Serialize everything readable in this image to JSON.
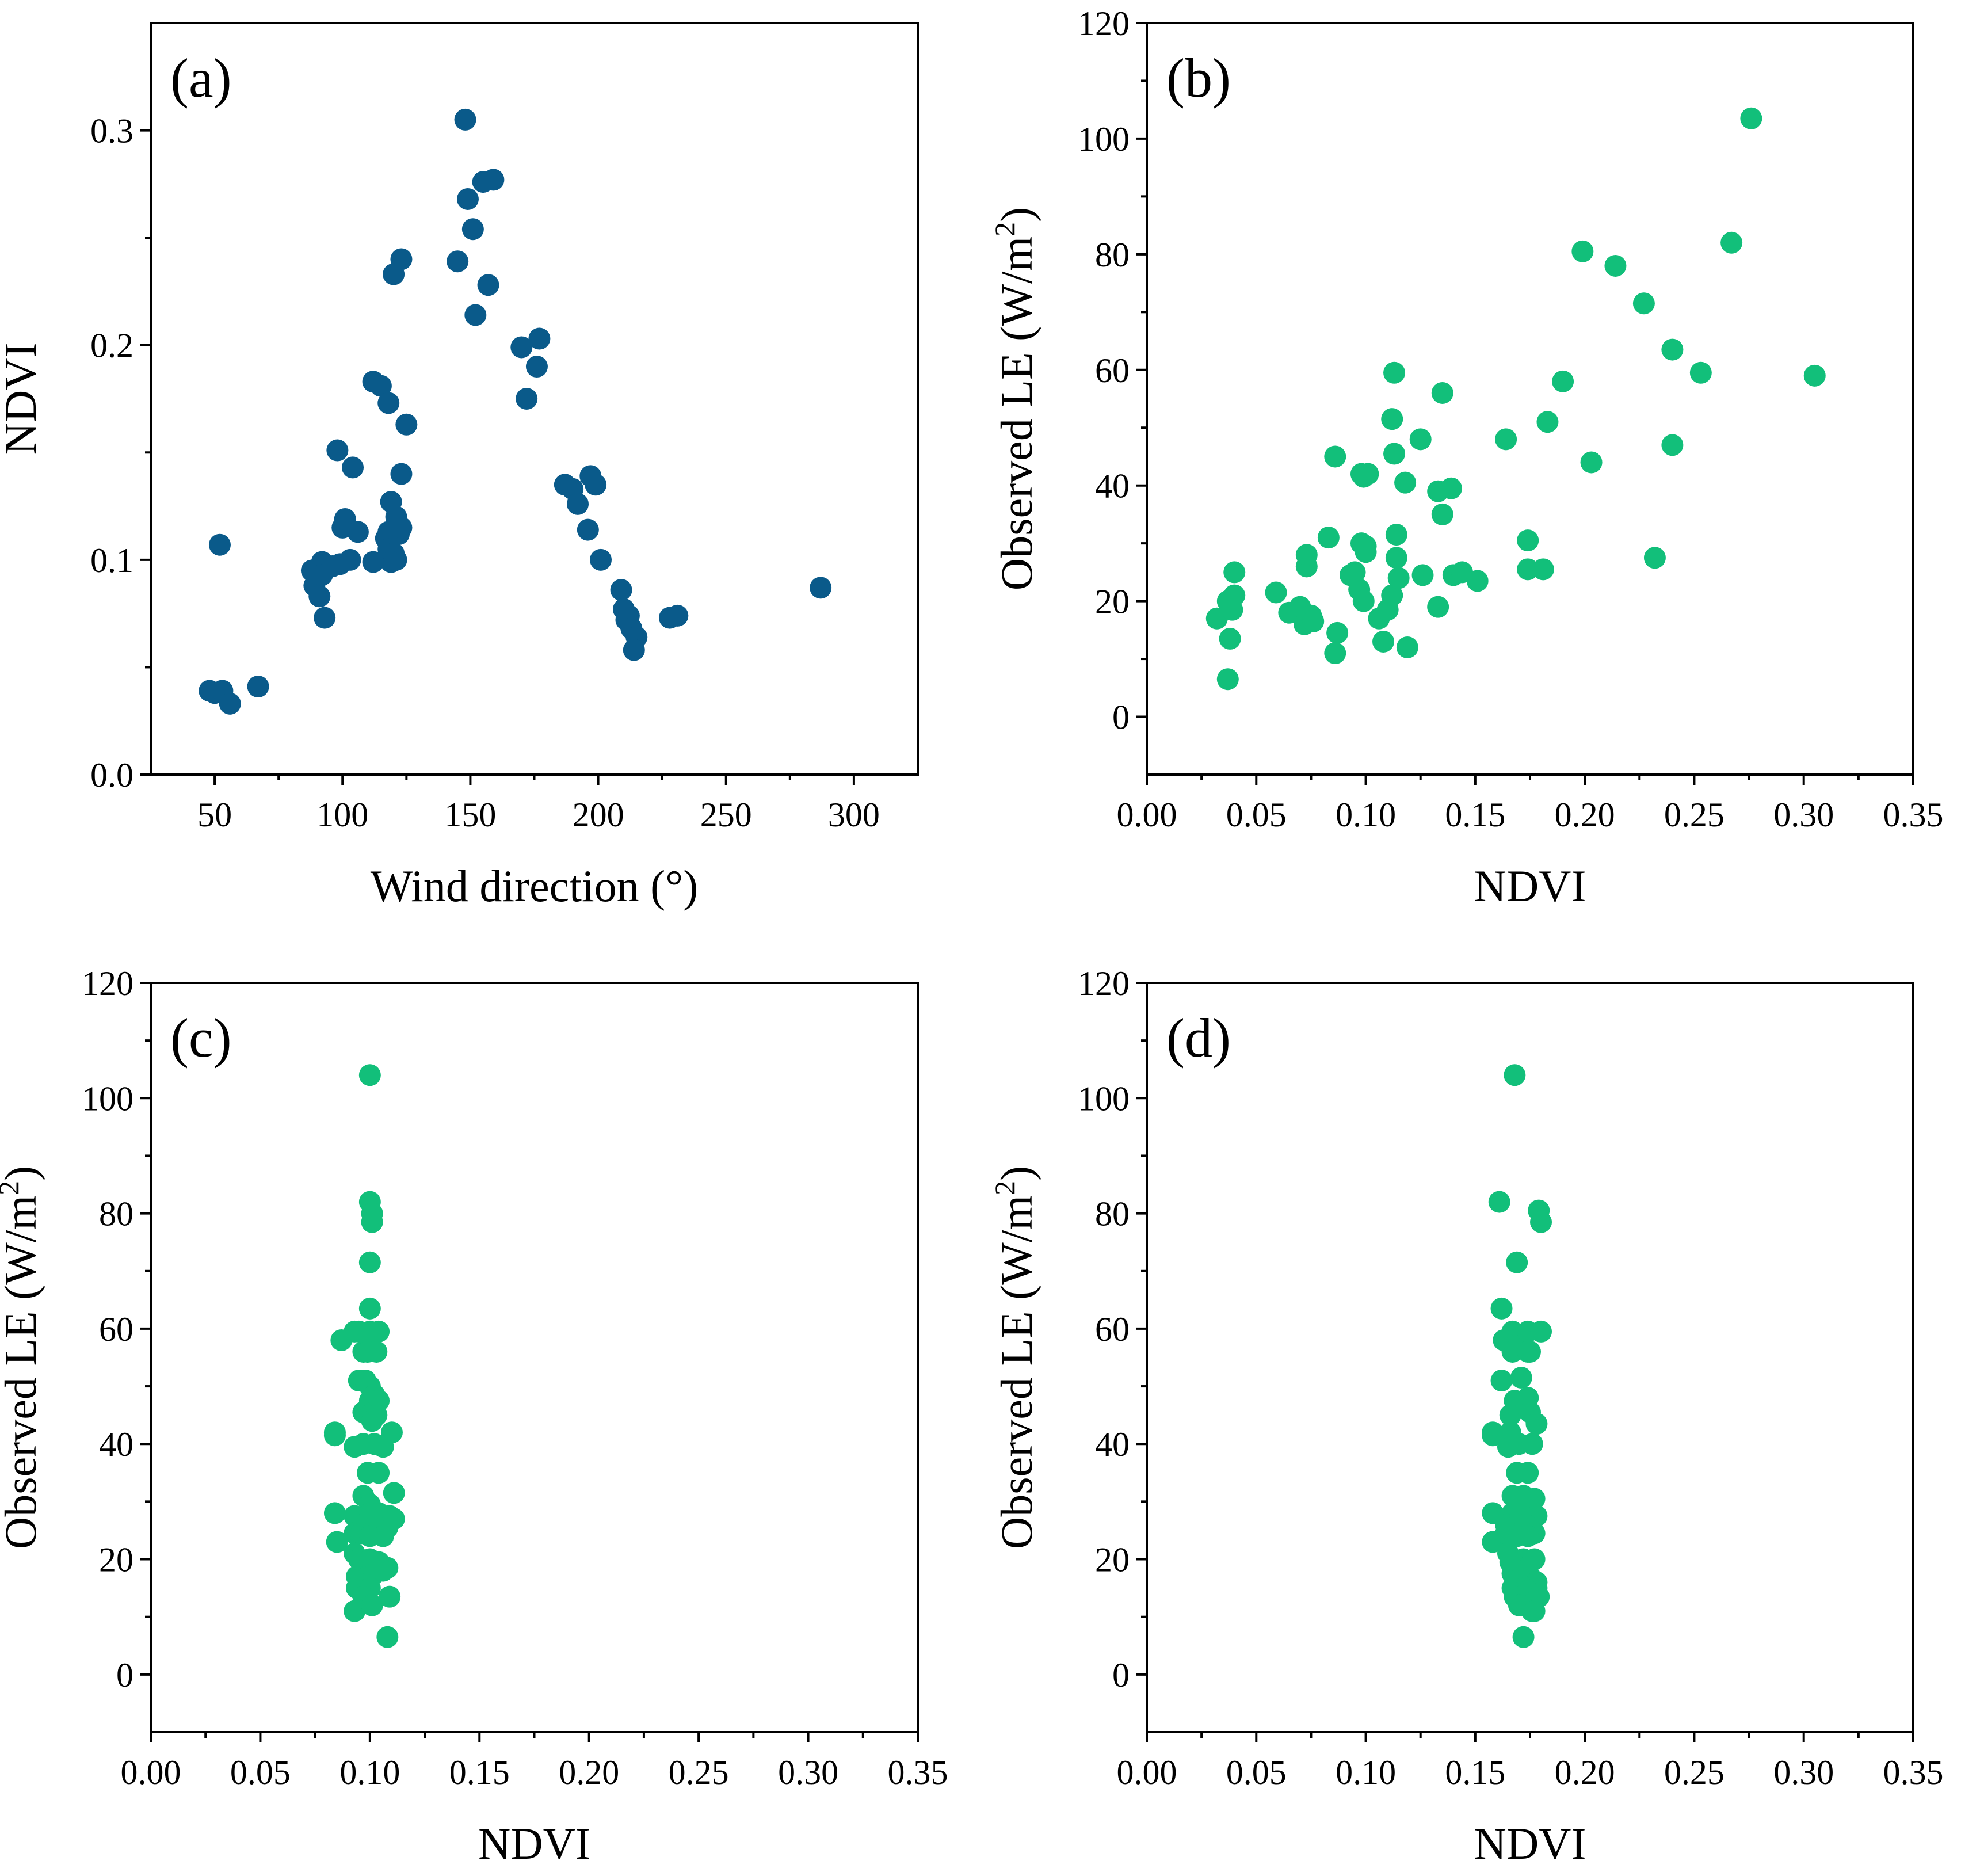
{
  "figure_title": "",
  "colors": {
    "panel_a": "#0a5a8a",
    "panels_bcd": "#12bf7a"
  },
  "chart_data": [
    {
      "panel": "(a)",
      "type": "scatter",
      "xlabel": "Wind direction (°)",
      "ylabel": "NDVI",
      "xlim": [
        25,
        325
      ],
      "ylim": [
        0,
        0.35
      ],
      "xticks": [
        50,
        100,
        150,
        200,
        250,
        300
      ],
      "yticks": [
        0.0,
        0.1,
        0.2,
        0.3
      ],
      "xtick_labels": [
        "50",
        "100",
        "150",
        "200",
        "250",
        "300"
      ],
      "ytick_labels": [
        "0.0",
        "0.1",
        "0.2",
        "0.3"
      ],
      "color": "#0a5a8a",
      "x": [
        48,
        50,
        53,
        56,
        67,
        52,
        88,
        89,
        92,
        93,
        91,
        92,
        96,
        100,
        101,
        103,
        99,
        98,
        104,
        106,
        112,
        115,
        118,
        120,
        123,
        125,
        119,
        121,
        117,
        118,
        122,
        118,
        121,
        123,
        120,
        119,
        123,
        145,
        149,
        148,
        151,
        157,
        152,
        155,
        159,
        170,
        172,
        177,
        176,
        187,
        190,
        192,
        196,
        197,
        199,
        201,
        209,
        210,
        211,
        212,
        213,
        215,
        214,
        228,
        231,
        287,
        112
      ],
      "y": [
        0.039,
        0.038,
        0.039,
        0.033,
        0.041,
        0.107,
        0.095,
        0.088,
        0.099,
        0.073,
        0.083,
        0.093,
        0.097,
        0.115,
        0.119,
        0.1,
        0.098,
        0.151,
        0.143,
        0.113,
        0.183,
        0.181,
        0.173,
        0.233,
        0.24,
        0.163,
        0.127,
        0.12,
        0.11,
        0.113,
        0.112,
        0.105,
        0.1,
        0.115,
        0.103,
        0.099,
        0.14,
        0.239,
        0.268,
        0.305,
        0.254,
        0.228,
        0.214,
        0.276,
        0.277,
        0.199,
        0.175,
        0.203,
        0.19,
        0.135,
        0.133,
        0.126,
        0.114,
        0.139,
        0.135,
        0.1,
        0.086,
        0.077,
        0.072,
        0.074,
        0.068,
        0.064,
        0.058,
        0.073,
        0.074,
        0.087,
        0.099
      ]
    },
    {
      "panel": "(b)",
      "type": "scatter",
      "xlabel": "NDVI",
      "ylabel": "Observed LE (W/m",
      "ylabel_sup": "2",
      "ylabel_end": ")",
      "xlim": [
        0,
        0.35
      ],
      "ylim": [
        -10,
        120
      ],
      "xticks": [
        0,
        0.05,
        0.1,
        0.15,
        0.2,
        0.25,
        0.3,
        0.35
      ],
      "yticks": [
        0,
        20,
        40,
        60,
        80,
        100,
        120
      ],
      "xtick_labels": [
        "0.00",
        "0.05",
        "0.10",
        "0.15",
        "0.20",
        "0.25",
        "0.30",
        "0.35"
      ],
      "ytick_labels": [
        "0",
        "20",
        "40",
        "60",
        "80",
        "100",
        "120"
      ],
      "color": "#12bf7a",
      "x": [
        0.032,
        0.037,
        0.038,
        0.039,
        0.04,
        0.04,
        0.037,
        0.059,
        0.065,
        0.07,
        0.072,
        0.073,
        0.073,
        0.075,
        0.076,
        0.083,
        0.086,
        0.087,
        0.086,
        0.093,
        0.095,
        0.097,
        0.098,
        0.099,
        0.1,
        0.1,
        0.101,
        0.099,
        0.098,
        0.106,
        0.108,
        0.11,
        0.112,
        0.112,
        0.113,
        0.113,
        0.114,
        0.114,
        0.115,
        0.118,
        0.119,
        0.125,
        0.126,
        0.133,
        0.133,
        0.135,
        0.135,
        0.139,
        0.14,
        0.144,
        0.151,
        0.164,
        0.174,
        0.174,
        0.181,
        0.183,
        0.19,
        0.199,
        0.203,
        0.214,
        0.227,
        0.232,
        0.24,
        0.24,
        0.253,
        0.267,
        0.276,
        0.305
      ],
      "y": [
        17,
        6.5,
        13.5,
        18.5,
        21,
        25,
        20,
        21.5,
        18,
        19,
        16,
        26,
        28,
        17.5,
        16.5,
        31,
        11,
        14.5,
        45,
        24.5,
        25,
        22,
        42,
        20,
        29.5,
        28.5,
        42,
        41.5,
        30,
        17,
        13,
        18.5,
        51.5,
        21,
        45.5,
        59.5,
        27.5,
        31.5,
        24,
        40.5,
        12,
        48,
        24.5,
        39,
        19,
        35,
        56,
        39.5,
        24.5,
        25,
        23.5,
        48,
        30.5,
        25.5,
        25.5,
        51,
        58,
        80.5,
        44,
        78,
        71.5,
        27.5,
        63.5,
        47,
        59.5,
        82,
        103.5,
        59
      ]
    },
    {
      "panel": "(c)",
      "type": "scatter",
      "xlabel": "NDVI",
      "ylabel": "Observed LE (W/m",
      "ylabel_sup": "2",
      "ylabel_end": ")",
      "xlim": [
        0,
        0.35
      ],
      "ylim": [
        -10,
        120
      ],
      "xticks": [
        0,
        0.05,
        0.1,
        0.15,
        0.2,
        0.25,
        0.3,
        0.35
      ],
      "yticks": [
        0,
        20,
        40,
        60,
        80,
        100,
        120
      ],
      "xtick_labels": [
        "0.00",
        "0.05",
        "0.10",
        "0.15",
        "0.20",
        "0.25",
        "0.30",
        "0.35"
      ],
      "ytick_labels": [
        "0",
        "20",
        "40",
        "60",
        "80",
        "100",
        "120"
      ],
      "color": "#12bf7a",
      "x": [
        0.1,
        0.1,
        0.101,
        0.101,
        0.1,
        0.1,
        0.087,
        0.093,
        0.095,
        0.1,
        0.104,
        0.097,
        0.099,
        0.103,
        0.095,
        0.098,
        0.1,
        0.102,
        0.1,
        0.104,
        0.084,
        0.084,
        0.097,
        0.1,
        0.103,
        0.101,
        0.11,
        0.111,
        0.097,
        0.102,
        0.106,
        0.093,
        0.099,
        0.104,
        0.097,
        0.1,
        0.109,
        0.093,
        0.1,
        0.104,
        0.084,
        0.085,
        0.097,
        0.105,
        0.108,
        0.111,
        0.093,
        0.096,
        0.1,
        0.106,
        0.093,
        0.095,
        0.1,
        0.104,
        0.108,
        0.094,
        0.099,
        0.102,
        0.106,
        0.094,
        0.1,
        0.097,
        0.093,
        0.101,
        0.109,
        0.108
      ],
      "y": [
        104,
        82,
        80,
        78.5,
        71.5,
        63.5,
        58,
        59.5,
        59.5,
        59.5,
        59.5,
        56,
        56,
        56,
        51,
        51,
        50,
        48.5,
        47.5,
        47.5,
        42,
        41.5,
        45.5,
        45,
        45,
        44,
        42,
        31.5,
        40,
        40,
        39.5,
        39.5,
        35,
        35,
        31,
        29.5,
        27.5,
        27.5,
        28,
        28,
        28,
        23,
        26,
        25.5,
        25.5,
        27,
        24.5,
        24.5,
        24,
        24,
        21,
        20,
        20,
        19.5,
        18.5,
        17,
        17,
        17.5,
        18,
        15,
        15,
        13.5,
        11,
        12,
        13.5,
        6.5
      ]
    },
    {
      "panel": "(d)",
      "type": "scatter",
      "xlabel": "NDVI",
      "ylabel": "Observed LE (W/m",
      "ylabel_sup": "2",
      "ylabel_end": ")",
      "xlim": [
        0,
        0.35
      ],
      "ylim": [
        -10,
        120
      ],
      "xticks": [
        0,
        0.05,
        0.1,
        0.15,
        0.2,
        0.25,
        0.3,
        0.35
      ],
      "yticks": [
        0,
        20,
        40,
        60,
        80,
        100,
        120
      ],
      "xtick_labels": [
        "0.00",
        "0.05",
        "0.10",
        "0.15",
        "0.20",
        "0.25",
        "0.30",
        "0.35"
      ],
      "ytick_labels": [
        "0",
        "20",
        "40",
        "60",
        "80",
        "100",
        "120"
      ],
      "color": "#12bf7a",
      "x": [
        0.168,
        0.161,
        0.179,
        0.18,
        0.169,
        0.162,
        0.163,
        0.167,
        0.168,
        0.174,
        0.175,
        0.18,
        0.167,
        0.174,
        0.162,
        0.171,
        0.168,
        0.174,
        0.175,
        0.166,
        0.178,
        0.158,
        0.158,
        0.166,
        0.17,
        0.176,
        0.165,
        0.169,
        0.174,
        0.167,
        0.172,
        0.177,
        0.167,
        0.172,
        0.178,
        0.158,
        0.164,
        0.168,
        0.173,
        0.177,
        0.158,
        0.164,
        0.169,
        0.174,
        0.165,
        0.172,
        0.177,
        0.166,
        0.17,
        0.175,
        0.167,
        0.172,
        0.178,
        0.167,
        0.173,
        0.178,
        0.168,
        0.174,
        0.179,
        0.17,
        0.176,
        0.171,
        0.177,
        0.172
      ],
      "y": [
        104,
        82,
        80.5,
        78.5,
        71.5,
        63.5,
        58,
        59.5,
        57,
        59.5,
        56,
        59.5,
        56,
        56,
        51,
        51.5,
        47.5,
        48,
        45.5,
        45,
        43.5,
        42,
        41.5,
        42,
        40,
        40,
        39.5,
        35,
        35,
        31,
        31,
        30.5,
        28,
        28,
        27.5,
        28,
        26,
        25.5,
        26,
        24.5,
        23,
        24.5,
        24,
        24,
        21,
        20,
        20,
        19.5,
        18.5,
        17,
        17.5,
        18,
        16,
        15,
        15,
        15,
        13.5,
        14.5,
        13.5,
        12,
        11,
        12,
        11,
        6.5
      ]
    }
  ]
}
